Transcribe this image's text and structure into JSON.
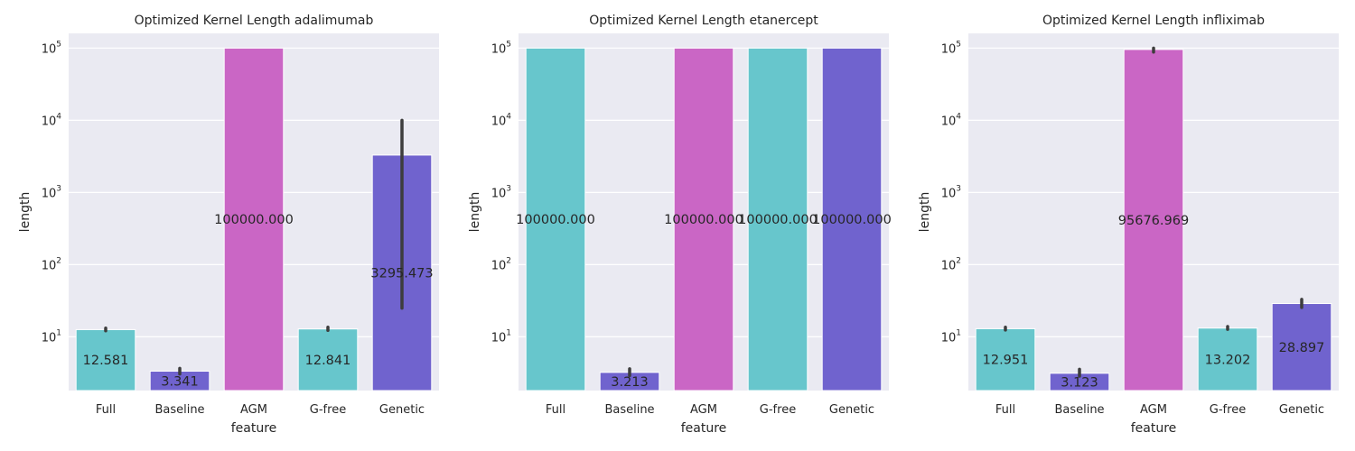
{
  "chart_data": [
    {
      "type": "bar",
      "title": "Optimized Kernel Length adalimumab",
      "xlabel": "feature",
      "ylabel": "length",
      "yscale": "log",
      "ylim": [
        1.8,
        160000
      ],
      "yticks": [
        10,
        100,
        1000,
        10000,
        100000
      ],
      "ytick_labels": [
        {
          "base": "10",
          "exp": "1"
        },
        {
          "base": "10",
          "exp": "2"
        },
        {
          "base": "10",
          "exp": "3"
        },
        {
          "base": "10",
          "exp": "4"
        },
        {
          "base": "10",
          "exp": "5"
        }
      ],
      "categories": [
        "Full",
        "Baseline",
        "AGM",
        "G-free",
        "Genetic"
      ],
      "values": [
        12.581,
        3.341,
        100000,
        12.841,
        3295.473
      ],
      "value_labels": [
        "12.581",
        "3.341",
        "100000.000",
        "12.841",
        "3295.473"
      ],
      "errors": [
        [
          12.1,
          13.2
        ],
        [
          3.05,
          3.65
        ],
        null,
        [
          12.3,
          13.6
        ],
        [
          25,
          10000
        ]
      ],
      "colors": [
        "#67c6cc",
        "#7063ce",
        "#ca66c5",
        "#67c6cc",
        "#7063ce"
      ],
      "grid": true
    },
    {
      "type": "bar",
      "title": "Optimized Kernel Length etanercept",
      "xlabel": "feature",
      "ylabel": "length",
      "yscale": "log",
      "ylim": [
        1.8,
        160000
      ],
      "yticks": [
        10,
        100,
        1000,
        10000,
        100000
      ],
      "ytick_labels": [
        {
          "base": "10",
          "exp": "1"
        },
        {
          "base": "10",
          "exp": "2"
        },
        {
          "base": "10",
          "exp": "3"
        },
        {
          "base": "10",
          "exp": "4"
        },
        {
          "base": "10",
          "exp": "5"
        }
      ],
      "categories": [
        "Full",
        "Baseline",
        "AGM",
        "G-free",
        "Genetic"
      ],
      "values": [
        100000,
        3.213,
        100000,
        100000,
        100000
      ],
      "value_labels": [
        "100000.000",
        "3.213",
        "100000.000",
        "100000.000",
        "100000.000"
      ],
      "errors": [
        null,
        [
          2.9,
          3.6
        ],
        null,
        null,
        null
      ],
      "colors": [
        "#67c6cc",
        "#7063ce",
        "#ca66c5",
        "#67c6cc",
        "#7063ce"
      ],
      "grid": true
    },
    {
      "type": "bar",
      "title": "Optimized Kernel Length infliximab",
      "xlabel": "feature",
      "ylabel": "length",
      "yscale": "log",
      "ylim": [
        1.8,
        160000
      ],
      "yticks": [
        10,
        100,
        1000,
        10000,
        100000
      ],
      "ytick_labels": [
        {
          "base": "10",
          "exp": "1"
        },
        {
          "base": "10",
          "exp": "2"
        },
        {
          "base": "10",
          "exp": "3"
        },
        {
          "base": "10",
          "exp": "4"
        },
        {
          "base": "10",
          "exp": "5"
        }
      ],
      "categories": [
        "Full",
        "Baseline",
        "AGM",
        "G-free",
        "Genetic"
      ],
      "values": [
        12.951,
        3.123,
        95676.969,
        13.202,
        28.897
      ],
      "value_labels": [
        "12.951",
        "3.123",
        "95676.969",
        "13.202",
        "28.897"
      ],
      "errors": [
        [
          12.4,
          13.6
        ],
        [
          2.85,
          3.55
        ],
        [
          88000,
          100000
        ],
        [
          12.7,
          13.9
        ],
        [
          25.5,
          33
        ]
      ],
      "colors": [
        "#67c6cc",
        "#7063ce",
        "#ca66c5",
        "#67c6cc",
        "#7063ce"
      ],
      "grid": true
    }
  ]
}
